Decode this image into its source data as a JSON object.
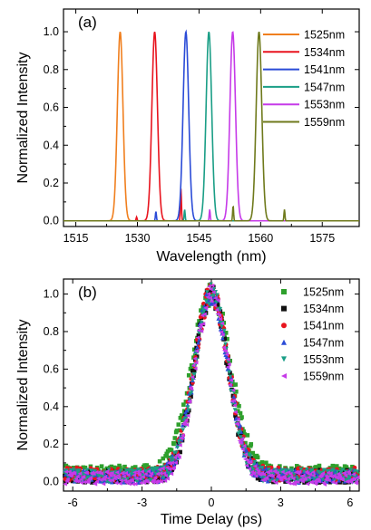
{
  "chart_data": [
    {
      "panel_label": "(a)",
      "type": "line",
      "xlabel": "Wavelength (nm)",
      "ylabel": "Normalized Intensity",
      "xlim": [
        1512,
        1584
      ],
      "ylim": [
        -0.03,
        1.12
      ],
      "x_ticks": [
        1515,
        1530,
        1545,
        1560,
        1575
      ],
      "y_ticks": [
        0.0,
        0.2,
        0.4,
        0.6,
        0.8,
        1.0
      ],
      "y_tick_labels": [
        "0.0",
        "0.2",
        "0.4",
        "0.6",
        "0.8",
        "1.0"
      ],
      "legend_position": "top-right",
      "series": [
        {
          "name": "1525nm",
          "color": "#f07f1e",
          "center": 1525.8,
          "fwhm": 1.6,
          "sidebands": []
        },
        {
          "name": "1534nm",
          "color": "#e8141e",
          "center": 1534.2,
          "fwhm": 1.6,
          "sidebands": [
            {
              "x": 1540.6,
              "y": 0.17
            },
            {
              "x": 1529.8,
              "y": 0.02
            }
          ]
        },
        {
          "name": "1541nm",
          "color": "#2a4bd7",
          "center": 1541.8,
          "fwhm": 1.6,
          "sidebands": [
            {
              "x": 1534.5,
              "y": 0.05
            }
          ]
        },
        {
          "name": "1547nm",
          "color": "#1a9e86",
          "center": 1547.4,
          "fwhm": 1.6,
          "sidebands": [
            {
              "x": 1541.5,
              "y": 0.06
            }
          ]
        },
        {
          "name": "1553nm",
          "color": "#c63ae8",
          "center": 1553.2,
          "fwhm": 1.6,
          "sidebands": [
            {
              "x": 1547.6,
              "y": 0.06
            }
          ]
        },
        {
          "name": "1559nm",
          "color": "#6f7a1c",
          "center": 1559.6,
          "fwhm": 1.6,
          "sidebands": [
            {
              "x": 1553.3,
              "y": 0.08
            },
            {
              "x": 1565.8,
              "y": 0.06
            }
          ]
        }
      ]
    },
    {
      "panel_label": "(b)",
      "type": "scatter",
      "xlabel": "Time Delay (ps)",
      "ylabel": "Normalized Intensity",
      "xlim": [
        -6.4,
        6.4
      ],
      "ylim": [
        -0.05,
        1.08
      ],
      "x_ticks": [
        -6,
        -3,
        0,
        3,
        6
      ],
      "y_ticks": [
        0.0,
        0.2,
        0.4,
        0.6,
        0.8,
        1.0
      ],
      "y_tick_labels": [
        "0.0",
        "0.2",
        "0.4",
        "0.6",
        "0.8",
        "1.0"
      ],
      "legend_position": "top-right",
      "series": [
        {
          "name": "1525nm",
          "color": "#2ea02c",
          "marker": "square",
          "fwhm": 1.95,
          "background": 0.05
        },
        {
          "name": "1534nm",
          "color": "#111111",
          "marker": "square",
          "fwhm": 1.7,
          "background": 0.03
        },
        {
          "name": "1541nm",
          "color": "#e8141e",
          "marker": "circle",
          "fwhm": 1.75,
          "background": 0.04
        },
        {
          "name": "1547nm",
          "color": "#2a4bd7",
          "marker": "triangle-up",
          "fwhm": 1.72,
          "background": 0.03
        },
        {
          "name": "1553nm",
          "color": "#1a9e86",
          "marker": "triangle-down",
          "fwhm": 1.72,
          "background": 0.03
        },
        {
          "name": "1559nm",
          "color": "#c63ae8",
          "marker": "triangle-left",
          "fwhm": 1.7,
          "background": 0.02
        }
      ]
    }
  ]
}
